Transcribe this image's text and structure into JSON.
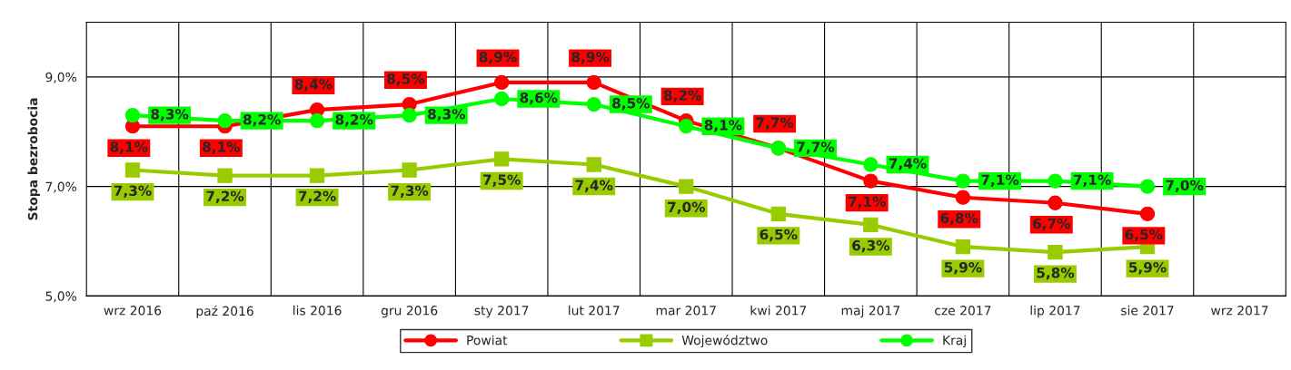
{
  "chart_data": {
    "type": "line",
    "ylabel": "Stopa bezrobocia",
    "categories": [
      "wrz 2016",
      "paź 2016",
      "lis 2016",
      "gru 2016",
      "sty 2017",
      "lut 2017",
      "mar 2017",
      "kwi 2017",
      "maj 2017",
      "cze 2017",
      "lip 2017",
      "sie 2017",
      "wrz 2017"
    ],
    "series": [
      {
        "name": "Powiat",
        "color": "#ff0000",
        "marker": "circle",
        "values": [
          8.1,
          8.1,
          8.4,
          8.5,
          8.9,
          8.9,
          8.2,
          7.7,
          7.1,
          6.8,
          6.7,
          6.5,
          null
        ],
        "value_labels": [
          "8,1%",
          "8,1%",
          "8,4%",
          "8,5%",
          "8,9%",
          "8,9%",
          "8,2%",
          "7,7%",
          "7,1%",
          "6,8%",
          "6,7%",
          "6,5%",
          null
        ]
      },
      {
        "name": "Województwo",
        "color": "#99cc00",
        "marker": "square",
        "values": [
          7.3,
          7.2,
          7.2,
          7.3,
          7.5,
          7.4,
          7.0,
          6.5,
          6.3,
          5.9,
          5.8,
          5.9,
          null
        ],
        "value_labels": [
          "7,3%",
          "7,2%",
          "7,2%",
          "7,3%",
          "7,5%",
          "7,4%",
          "7,0%",
          "6,5%",
          "6,3%",
          "5,9%",
          "5,8%",
          "5,9%",
          null
        ]
      },
      {
        "name": "Kraj",
        "color": "#00ff00",
        "marker": "circle",
        "values": [
          8.3,
          8.2,
          8.2,
          8.3,
          8.6,
          8.5,
          8.1,
          7.7,
          7.4,
          7.1,
          7.1,
          7.0,
          null
        ],
        "value_labels": [
          "8,3%",
          "8,2%",
          "8,2%",
          "8,3%",
          "8,6%",
          "8,5%",
          "8,1%",
          "7,7%",
          "7,4%",
          "7,1%",
          "7,1%",
          "7,0%",
          null
        ]
      }
    ],
    "ylim": [
      5,
      10
    ],
    "yticks": [
      {
        "value": 5,
        "label": "5,0%"
      },
      {
        "value": 7,
        "label": "7,0%"
      },
      {
        "value": 9,
        "label": "9,0%"
      }
    ],
    "grid": true,
    "legend": "bottom",
    "line_style": "solid"
  }
}
